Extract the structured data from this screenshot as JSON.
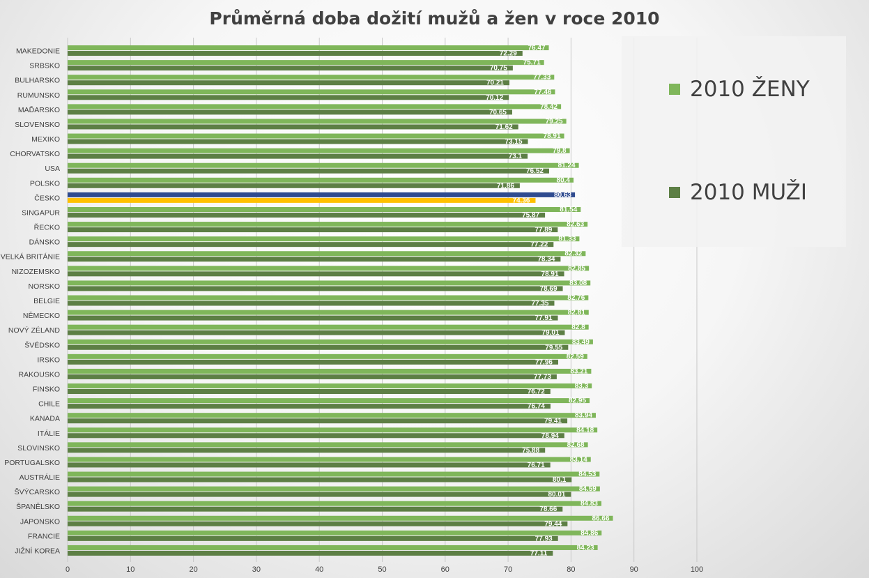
{
  "chart_data": {
    "type": "bar",
    "orientation": "horizontal",
    "title": "Průměrná doba dožití mužů a žen v roce 2010",
    "xlim": [
      0,
      100
    ],
    "x_ticks": [
      0,
      10,
      20,
      30,
      40,
      50,
      60,
      70,
      80,
      90,
      100
    ],
    "grid": true,
    "legend_position": "right",
    "colors": {
      "zeny": "#7fb65a",
      "muzi": "#5d7f45",
      "highlight_zeny": "#2f4b8f",
      "highlight_muzi": "#ffc000"
    },
    "highlight_category": "ČESKO",
    "categories": [
      "MAKEDONIE",
      "SRBSKO",
      "BULHARSKO",
      "RUMUNSKO",
      "MAĎARSKO",
      "SLOVENSKO",
      "MEXIKO",
      "CHORVATSKO",
      "USA",
      "POLSKO",
      "ČESKO",
      "SINGAPUR",
      "ŘECKO",
      "DÁNSKO",
      "VELKÁ BRITÁNIE",
      "NIZOZEMSKO",
      "NORSKO",
      "BELGIE",
      "NĚMECKO",
      "NOVÝ ZÉLAND",
      "ŠVÉDSKO",
      "IRSKO",
      "RAKOUSKO",
      "FINSKO",
      "CHILE",
      "KANADA",
      "ITÁLIE",
      "SLOVINSKO",
      "PORTUGALSKO",
      "AUSTRÁLIE",
      "ŠVÝCARSKO",
      "ŠPANĚLSKO",
      "JAPONSKO",
      "FRANCIE",
      "JIŽNÍ KOREA"
    ],
    "series": [
      {
        "name": "2010 ŽENY",
        "values": [
          76.47,
          75.71,
          77.33,
          77.46,
          78.42,
          79.25,
          78.91,
          79.8,
          81.24,
          80.4,
          80.63,
          81.54,
          82.63,
          81.33,
          82.32,
          82.85,
          83.08,
          82.76,
          82.81,
          82.8,
          83.49,
          82.59,
          83.21,
          83.3,
          82.95,
          83.94,
          84.18,
          82.68,
          83.14,
          84.53,
          84.59,
          84.83,
          86.66,
          84.86,
          84.23
        ]
      },
      {
        "name": "2010 MUŽI",
        "values": [
          72.29,
          70.75,
          70.21,
          70.12,
          70.65,
          71.62,
          73.15,
          73.1,
          76.52,
          71.86,
          74.36,
          75.87,
          77.89,
          77.22,
          78.34,
          78.91,
          78.69,
          77.35,
          77.91,
          79.01,
          79.55,
          77.96,
          77.73,
          76.72,
          76.74,
          79.41,
          78.94,
          75.88,
          76.71,
          80.1,
          80.01,
          78.66,
          79.44,
          77.93,
          77.11
        ]
      }
    ],
    "value_labels": {
      "zeny": [
        "76.47",
        "75.71",
        "77.33",
        "77.46",
        "78.42",
        "79.25",
        "78.91",
        "79.8",
        "81.24",
        "80.4",
        "80.63",
        "81.54",
        "82.63",
        "81.33",
        "82.32",
        "82.85",
        "83.08",
        "82.76",
        "82.81",
        "82.8",
        "83.49",
        "82.59",
        "83.21",
        "83.3",
        "82.95",
        "83.94",
        "84.18",
        "82.68",
        "83.14",
        "84.53",
        "84.59",
        "84.83",
        "86.66",
        "84.86",
        "84.23"
      ],
      "muzi": [
        "72.29",
        "70.75",
        "70.21",
        "70.12",
        "70.65",
        "71.62",
        "73.15",
        "73.1",
        "76.52",
        "71.86",
        "74.36",
        "75.87",
        "77.89",
        "77.22",
        "78.34",
        "78.91",
        "78.69",
        "77.35",
        "77.91",
        "79.01",
        "79.55",
        "77.96",
        "77.73",
        "76.72",
        "76.74",
        "79.41",
        "78.94",
        "75.88",
        "76.71",
        "80.1",
        "80.01",
        "78.66",
        "79.44",
        "77.93",
        "77.11"
      ]
    }
  }
}
